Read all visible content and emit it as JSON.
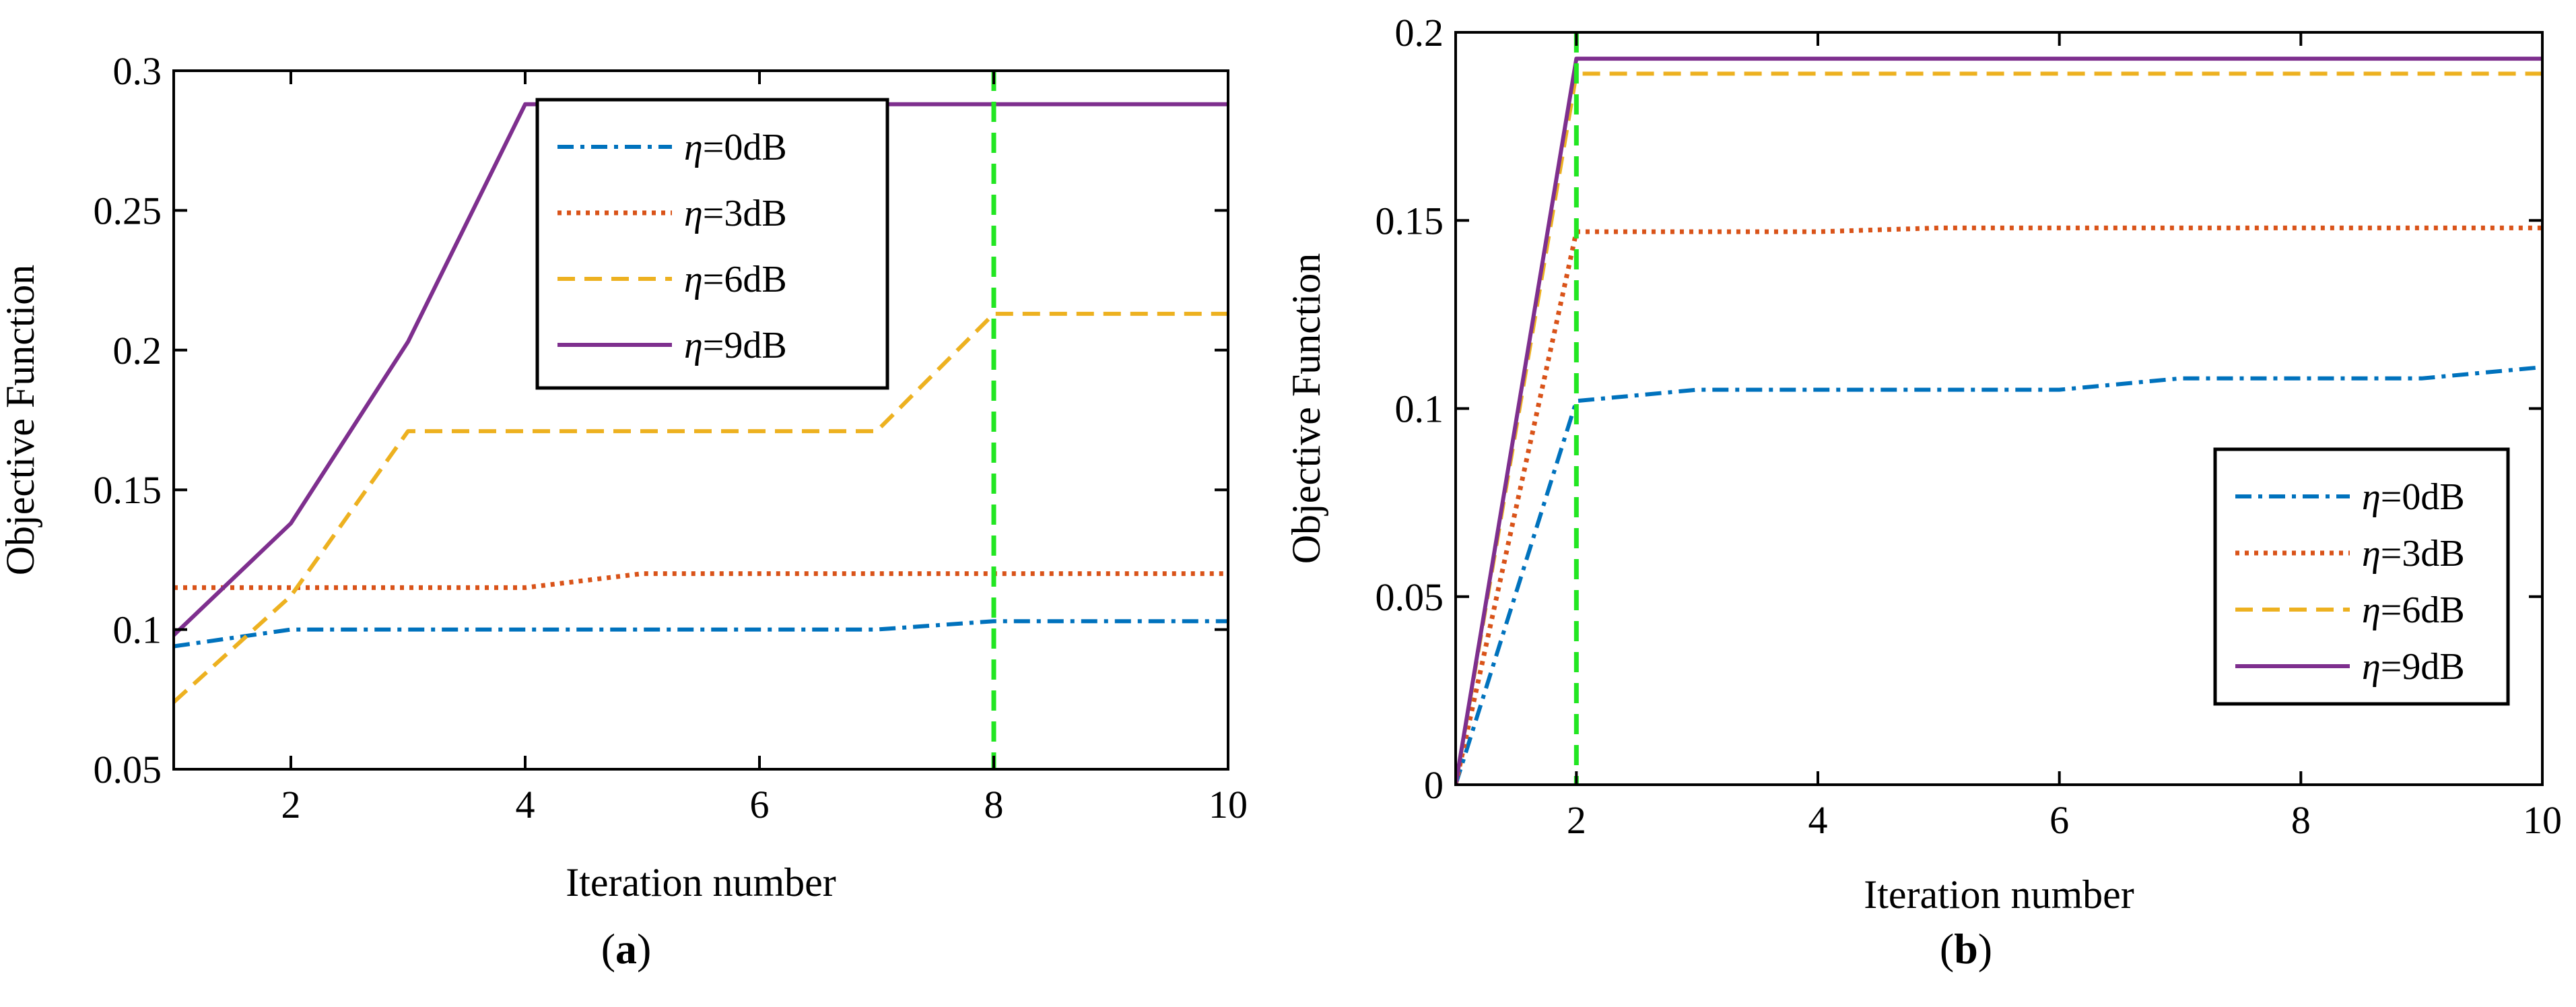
{
  "chart_data": [
    {
      "type": "line",
      "panel": "a",
      "caption": {
        "open": "(",
        "letter": "a",
        "close": ")"
      },
      "xlabel": "Iteration number",
      "ylabel": "Objective Function",
      "xlim": [
        1,
        10
      ],
      "ylim": [
        0.05,
        0.3
      ],
      "xticks": [
        2,
        4,
        6,
        8,
        10
      ],
      "yticks": [
        0.05,
        0.1,
        0.15,
        0.2,
        0.25,
        0.3
      ],
      "xtick_labels": [
        "2",
        "4",
        "6",
        "8",
        "10"
      ],
      "ytick_labels": [
        "0.05",
        "0.1",
        "0.15",
        "0.2",
        "0.25",
        "0.3"
      ],
      "vline": {
        "x": 8,
        "color": "#22e622"
      },
      "legend_position": "upper-center",
      "x": [
        1,
        2,
        3,
        4,
        5,
        6,
        7,
        8,
        9,
        10
      ],
      "series": [
        {
          "eta": "η",
          "name": "=0dB",
          "color": "#0072bd",
          "style": "dashdot",
          "values": [
            0.094,
            0.1,
            0.1,
            0.1,
            0.1,
            0.1,
            0.1,
            0.103,
            0.103,
            0.103
          ]
        },
        {
          "eta": "η",
          "name": "=3dB",
          "color": "#d95319",
          "style": "dotted",
          "values": [
            0.115,
            0.115,
            0.115,
            0.115,
            0.12,
            0.12,
            0.12,
            0.12,
            0.12,
            0.12
          ]
        },
        {
          "eta": "η",
          "name": "=6dB",
          "color": "#edb120",
          "style": "dashed",
          "values": [
            0.074,
            0.112,
            0.171,
            0.171,
            0.171,
            0.171,
            0.171,
            0.213,
            0.213,
            0.213
          ]
        },
        {
          "eta": "η",
          "name": "=9dB",
          "color": "#7e2f8e",
          "style": "solid",
          "values": [
            0.098,
            0.138,
            0.203,
            0.288,
            0.288,
            0.288,
            0.288,
            0.288,
            0.288,
            0.288
          ]
        }
      ]
    },
    {
      "type": "line",
      "panel": "b",
      "caption": {
        "open": "(",
        "letter": "b",
        "close": ")"
      },
      "xlabel": "Iteration number",
      "ylabel": "Objective Function",
      "xlim": [
        1,
        10
      ],
      "ylim": [
        0,
        0.2
      ],
      "xticks": [
        2,
        4,
        6,
        8,
        10
      ],
      "yticks": [
        0,
        0.05,
        0.1,
        0.15,
        0.2
      ],
      "xtick_labels": [
        "2",
        "4",
        "6",
        "8",
        "10"
      ],
      "ytick_labels": [
        "0",
        "0.05",
        "0.1",
        "0.15",
        "0.2"
      ],
      "vline": {
        "x": 2,
        "color": "#22e622"
      },
      "legend_position": "lower-right",
      "x": [
        1,
        2,
        3,
        4,
        5,
        6,
        7,
        8,
        9,
        10
      ],
      "series": [
        {
          "eta": "η",
          "name": "=0dB",
          "color": "#0072bd",
          "style": "dashdot",
          "values": [
            0,
            0.102,
            0.105,
            0.105,
            0.105,
            0.105,
            0.108,
            0.108,
            0.108,
            0.111
          ]
        },
        {
          "eta": "η",
          "name": "=3dB",
          "color": "#d95319",
          "style": "dotted",
          "values": [
            0,
            0.147,
            0.147,
            0.147,
            0.148,
            0.148,
            0.148,
            0.148,
            0.148,
            0.148
          ]
        },
        {
          "eta": "η",
          "name": "=6dB",
          "color": "#edb120",
          "style": "dashed",
          "values": [
            0,
            0.189,
            0.189,
            0.189,
            0.189,
            0.189,
            0.189,
            0.189,
            0.189,
            0.189
          ]
        },
        {
          "eta": "η",
          "name": "=9dB",
          "color": "#7e2f8e",
          "style": "solid",
          "values": [
            0,
            0.193,
            0.193,
            0.193,
            0.193,
            0.193,
            0.193,
            0.193,
            0.193,
            0.193
          ]
        }
      ]
    }
  ]
}
